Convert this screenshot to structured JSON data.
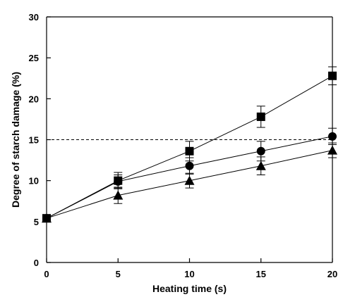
{
  "chart_data": {
    "type": "line",
    "title": "",
    "xlabel": "Heating time (s)",
    "ylabel": "Degree of starch damage (%)",
    "xlim": [
      0,
      20
    ],
    "ylim": [
      0,
      30
    ],
    "x_ticks": [
      "0",
      "5",
      "10",
      "15",
      "20"
    ],
    "y_ticks": [
      "0",
      "5",
      "10",
      "15",
      "20",
      "25",
      "30"
    ],
    "grid": false,
    "legend": "none",
    "reference_line": {
      "y": 15,
      "style": "dashed"
    },
    "series": [
      {
        "marker": "square",
        "x": [
          0,
          5,
          10,
          15,
          20
        ],
        "y": [
          5.4,
          10.0,
          13.6,
          17.8,
          22.8
        ],
        "err": [
          0.3,
          1.0,
          1.2,
          1.3,
          1.1
        ]
      },
      {
        "marker": "circle",
        "x": [
          0,
          5,
          10,
          15,
          20
        ],
        "y": [
          5.4,
          9.9,
          11.8,
          13.6,
          15.4
        ],
        "err": [
          0.3,
          0.8,
          1.0,
          1.2,
          1.0
        ]
      },
      {
        "marker": "triangle",
        "x": [
          0,
          5,
          10,
          15,
          20
        ],
        "y": [
          5.4,
          8.2,
          10.0,
          11.8,
          13.7
        ],
        "err": [
          0.3,
          1.0,
          0.9,
          1.1,
          0.9
        ]
      }
    ]
  }
}
